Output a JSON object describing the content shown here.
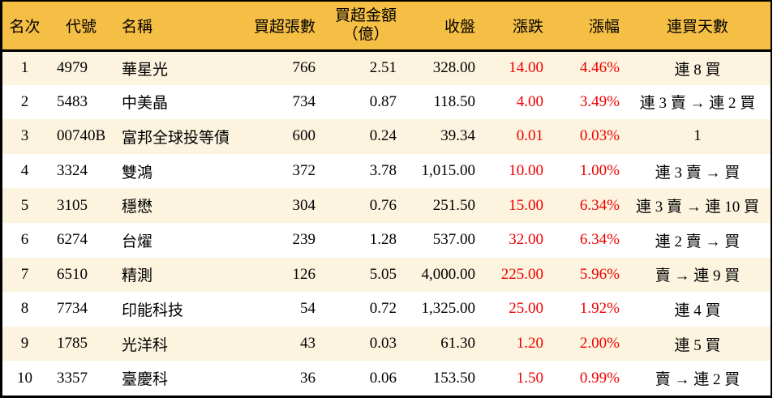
{
  "chart_data": {
    "type": "table",
    "columns": [
      {
        "key": "rank",
        "label": "名次"
      },
      {
        "key": "code",
        "label": "代號"
      },
      {
        "key": "name",
        "label": "名稱"
      },
      {
        "key": "volume",
        "label": "買超張數"
      },
      {
        "key": "amount",
        "label": "買超金額",
        "label2": "（億）"
      },
      {
        "key": "close",
        "label": "收盤"
      },
      {
        "key": "change",
        "label": "漲跌"
      },
      {
        "key": "pct",
        "label": "漲幅"
      },
      {
        "key": "days",
        "label": "連買天數"
      }
    ],
    "rows": [
      {
        "rank": "1",
        "code": "4979",
        "name": "華星光",
        "volume": "766",
        "amount": "2.51",
        "close": "328.00",
        "change": "14.00",
        "pct": "4.46%",
        "days": "連 8 買"
      },
      {
        "rank": "2",
        "code": "5483",
        "name": "中美晶",
        "volume": "734",
        "amount": "0.87",
        "close": "118.50",
        "change": "4.00",
        "pct": "3.49%",
        "days": "連 3 賣 → 連 2 買"
      },
      {
        "rank": "3",
        "code": "00740B",
        "name": "富邦全球投等債",
        "volume": "600",
        "amount": "0.24",
        "close": "39.34",
        "change": "0.01",
        "pct": "0.03%",
        "days": "1"
      },
      {
        "rank": "4",
        "code": "3324",
        "name": "雙鴻",
        "volume": "372",
        "amount": "3.78",
        "close": "1,015.00",
        "change": "10.00",
        "pct": "1.00%",
        "days": "連 3 賣 → 買"
      },
      {
        "rank": "5",
        "code": "3105",
        "name": "穩懋",
        "volume": "304",
        "amount": "0.76",
        "close": "251.50",
        "change": "15.00",
        "pct": "6.34%",
        "days": "連 3 賣 → 連 10 買"
      },
      {
        "rank": "6",
        "code": "6274",
        "name": "台燿",
        "volume": "239",
        "amount": "1.28",
        "close": "537.00",
        "change": "32.00",
        "pct": "6.34%",
        "days": "連 2 賣 → 買"
      },
      {
        "rank": "7",
        "code": "6510",
        "name": "精測",
        "volume": "126",
        "amount": "5.05",
        "close": "4,000.00",
        "change": "225.00",
        "pct": "5.96%",
        "days": "賣 → 連 9 買"
      },
      {
        "rank": "8",
        "code": "7734",
        "name": "印能科技",
        "volume": "54",
        "amount": "0.72",
        "close": "1,325.00",
        "change": "25.00",
        "pct": "1.92%",
        "days": "連 4 買"
      },
      {
        "rank": "9",
        "code": "1785",
        "name": "光洋科",
        "volume": "43",
        "amount": "0.03",
        "close": "61.30",
        "change": "1.20",
        "pct": "2.00%",
        "days": "連 5 買"
      },
      {
        "rank": "10",
        "code": "3357",
        "name": "臺慶科",
        "volume": "36",
        "amount": "0.06",
        "close": "153.50",
        "change": "1.50",
        "pct": "0.99%",
        "days": "賣 → 連 2 買"
      }
    ]
  },
  "colors": {
    "header_bg": "#F5BE45",
    "row_stripe_bg": "#FCF4DF",
    "row_bg": "#FFFFFF",
    "up_red": "#EE0000",
    "border_black": "#000000"
  }
}
